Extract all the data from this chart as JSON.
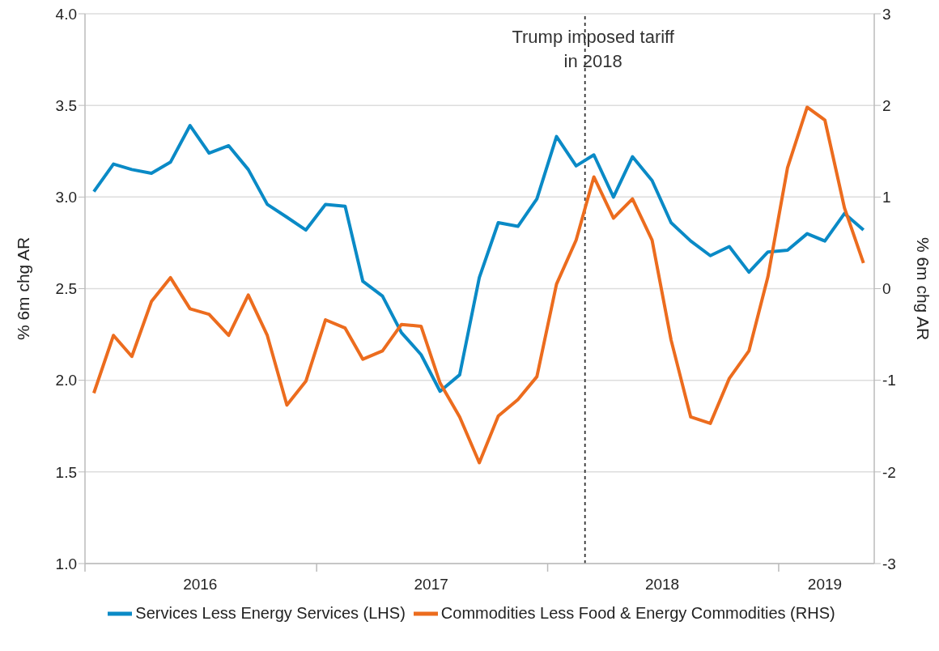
{
  "chart_data": {
    "type": "line",
    "x": [
      "2016-01-15",
      "2016-02-15",
      "2016-03-15",
      "2016-04-15",
      "2016-05-15",
      "2016-06-15",
      "2016-07-15",
      "2016-08-15",
      "2016-09-15",
      "2016-10-15",
      "2016-11-15",
      "2016-12-15",
      "2017-01-15",
      "2017-02-15",
      "2017-03-15",
      "2017-04-15",
      "2017-05-15",
      "2017-06-15",
      "2017-07-15",
      "2017-08-15",
      "2017-09-15",
      "2017-10-15",
      "2017-11-15",
      "2017-12-15",
      "2018-01-15",
      "2018-02-15",
      "2018-03-15",
      "2018-04-15",
      "2018-05-15",
      "2018-06-15",
      "2018-07-15",
      "2018-08-15",
      "2018-09-15",
      "2018-10-15",
      "2018-11-15",
      "2018-12-15",
      "2019-01-15",
      "2019-02-15",
      "2019-03-15",
      "2019-04-15",
      "2019-05-15"
    ],
    "series": [
      {
        "name": "Services Less Energy Services (LHS)",
        "color": "#0a8ac6",
        "values": [
          3.03,
          3.18,
          3.15,
          3.13,
          3.19,
          3.39,
          3.24,
          3.28,
          3.15,
          2.96,
          2.89,
          2.82,
          2.96,
          2.95,
          2.54,
          2.46,
          2.26,
          2.14,
          1.94,
          2.03,
          2.56,
          2.86,
          2.84,
          2.99,
          3.33,
          3.17,
          3.23,
          3.0,
          3.22,
          3.09,
          2.86,
          2.76,
          2.68,
          2.73,
          2.59,
          2.7,
          2.71,
          2.8,
          2.76,
          2.91,
          2.82
        ]
      },
      {
        "name": "Commodities Less Food & Energy Commodities (RHS)",
        "color": "#ec6c1e",
        "axis": "y2",
        "values": [
          -1.14,
          -0.51,
          -0.74,
          -0.14,
          0.12,
          -0.22,
          -0.28,
          -0.51,
          -0.07,
          -0.51,
          -1.27,
          -1.01,
          -0.34,
          -0.43,
          -0.77,
          -0.68,
          -0.39,
          -0.41,
          -1.03,
          -1.4,
          -1.9,
          -1.39,
          -1.21,
          -0.96,
          0.05,
          0.53,
          1.22,
          0.77,
          0.98,
          0.53,
          -0.56,
          -1.4,
          -1.47,
          -0.98,
          -0.68,
          0.13,
          1.32,
          1.98,
          1.84,
          0.88,
          0.28
        ]
      }
    ],
    "xlim": [
      "2016-01-01",
      "2019-06-01"
    ],
    "xticks": [
      {
        "value": "2016-01-01",
        "label": null
      },
      {
        "value": "2016-07-01",
        "label": "2016"
      },
      {
        "value": "2017-01-01",
        "label": null
      },
      {
        "value": "2017-07-01",
        "label": "2017"
      },
      {
        "value": "2018-01-01",
        "label": null
      },
      {
        "value": "2018-07-01",
        "label": "2018"
      },
      {
        "value": "2019-01-01",
        "label": null
      },
      {
        "value": "2019-03-15",
        "label": "2019"
      }
    ],
    "ylim": [
      1,
      4
    ],
    "yticks": [
      {
        "value": 1,
        "label": "1.0"
      },
      1.5,
      {
        "value": 2,
        "label": "2.0"
      },
      2.5,
      {
        "value": 3,
        "label": "3.0"
      },
      3.5,
      {
        "value": 4,
        "label": "4.0"
      }
    ],
    "y2lim": [
      -3,
      3
    ],
    "y2ticks": [
      -3,
      -2,
      -1,
      0,
      1,
      2,
      3
    ],
    "ylabel": "% 6m chg AR",
    "y2label": "% 6m chg AR",
    "ref_lines": [
      {
        "axis": "x",
        "value": "2018-03-01",
        "label": "Trump imposed tariff\nin 2018",
        "color": "#333333",
        "line_style": "dashed"
      }
    ],
    "grid": "y",
    "legend": "bottom",
    "marker": "none",
    "line_style": "solid"
  }
}
